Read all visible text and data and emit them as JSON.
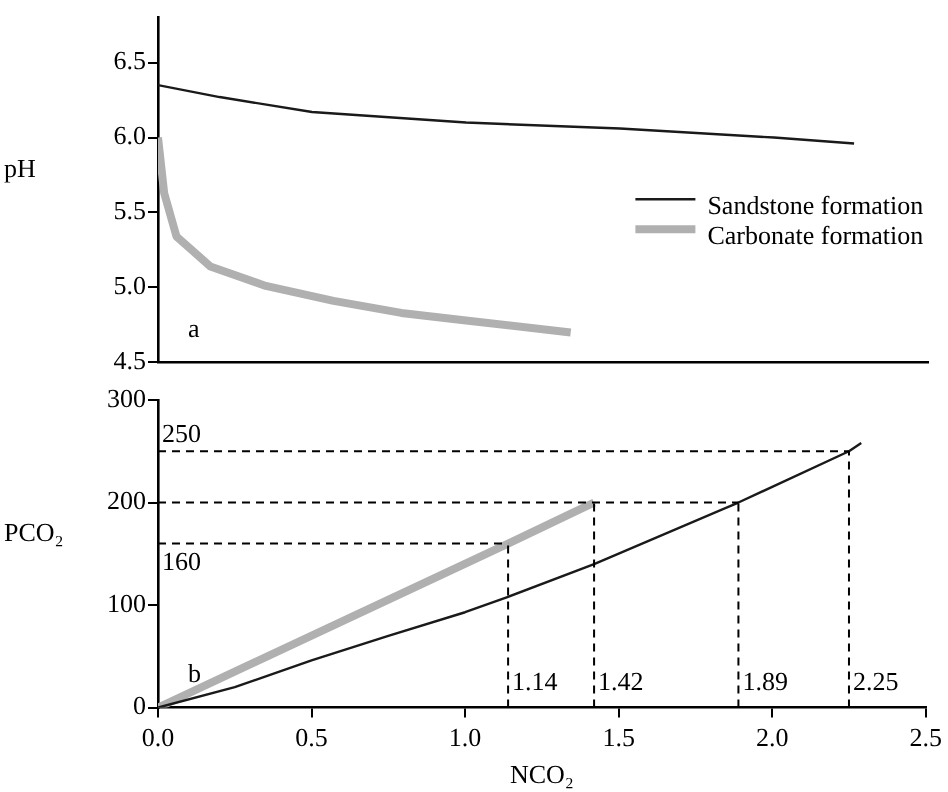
{
  "chart_data": [
    {
      "type": "line",
      "ylabel": "pH",
      "legend": "right",
      "marker": "none",
      "line_style": "solid",
      "tick_labels": "y",
      "grid": false,
      "xlim": [
        0,
        2.5
      ],
      "ylim": [
        4.5,
        6.8
      ],
      "yticks": [
        {
          "value": 4.5,
          "label": "4.5"
        },
        {
          "value": 5,
          "label": "5.0"
        },
        {
          "value": 5.5,
          "label": "5.5"
        },
        {
          "value": 6,
          "label": "6.0"
        },
        {
          "value": 6.5,
          "label": "6.5"
        }
      ],
      "annotations": [
        "a"
      ],
      "series": [
        {
          "name": "Sandstone formation",
          "color": "#1a1a1a",
          "x": [
            0,
            0.2,
            0.5,
            1.0,
            1.5,
            2.0,
            2.26
          ],
          "values": [
            6.35,
            6.27,
            6.17,
            6.1,
            6.06,
            6.0,
            5.96
          ]
        },
        {
          "name": "Carbonate formation",
          "color": "#b0b0b0",
          "x": [
            0,
            0.02,
            0.06,
            0.17,
            0.35,
            0.57,
            0.79,
            1.0,
            1.34
          ],
          "values": [
            6.0,
            5.63,
            5.34,
            5.14,
            5.01,
            4.91,
            4.83,
            4.78,
            4.7
          ]
        }
      ]
    },
    {
      "type": "line",
      "xlabel": "NCO₂",
      "ylabel": "PCO₂",
      "marker": "none",
      "line_style": "solid",
      "grid": false,
      "xlim": [
        0,
        2.5
      ],
      "ylim": [
        0,
        300
      ],
      "xticks": [
        {
          "value": 0,
          "label": "0.0"
        },
        {
          "value": 0.5,
          "label": "0.5"
        },
        {
          "value": 1,
          "label": "1.0"
        },
        {
          "value": 1.5,
          "label": "1.5"
        },
        {
          "value": 2,
          "label": "2.0"
        },
        {
          "value": 2.5,
          "label": "2.5"
        }
      ],
      "yticks": [
        0,
        100,
        200,
        300
      ],
      "annotations": [
        "b"
      ],
      "ref_lines": [
        {
          "axis": "y",
          "value": 250,
          "label": "250",
          "line_style": "dashed"
        },
        {
          "axis": "y",
          "value": 200,
          "label": null,
          "line_style": "dashed"
        },
        {
          "axis": "y",
          "value": 160,
          "label": "160",
          "line_style": "dashed"
        },
        {
          "axis": "x",
          "value": 1.14,
          "label": "1.14",
          "line_style": "dashed"
        },
        {
          "axis": "x",
          "value": 1.42,
          "label": "1.42",
          "line_style": "dashed"
        },
        {
          "axis": "x",
          "value": 1.89,
          "label": "1.89",
          "line_style": "dashed"
        },
        {
          "axis": "x",
          "value": 2.25,
          "label": "2.25",
          "line_style": "dashed"
        }
      ],
      "series": [
        {
          "color": "#1a1a1a",
          "x": [
            0,
            0.25,
            0.5,
            0.75,
            1.0,
            1.14,
            1.42,
            1.89,
            2.25,
            2.29
          ],
          "values": [
            0,
            20,
            46,
            70,
            93,
            108,
            140,
            200,
            250,
            258
          ]
        },
        {
          "color": "#b0b0b0",
          "x": [
            0,
            1.14,
            1.42
          ],
          "values": [
            0,
            160,
            200
          ]
        }
      ]
    }
  ]
}
